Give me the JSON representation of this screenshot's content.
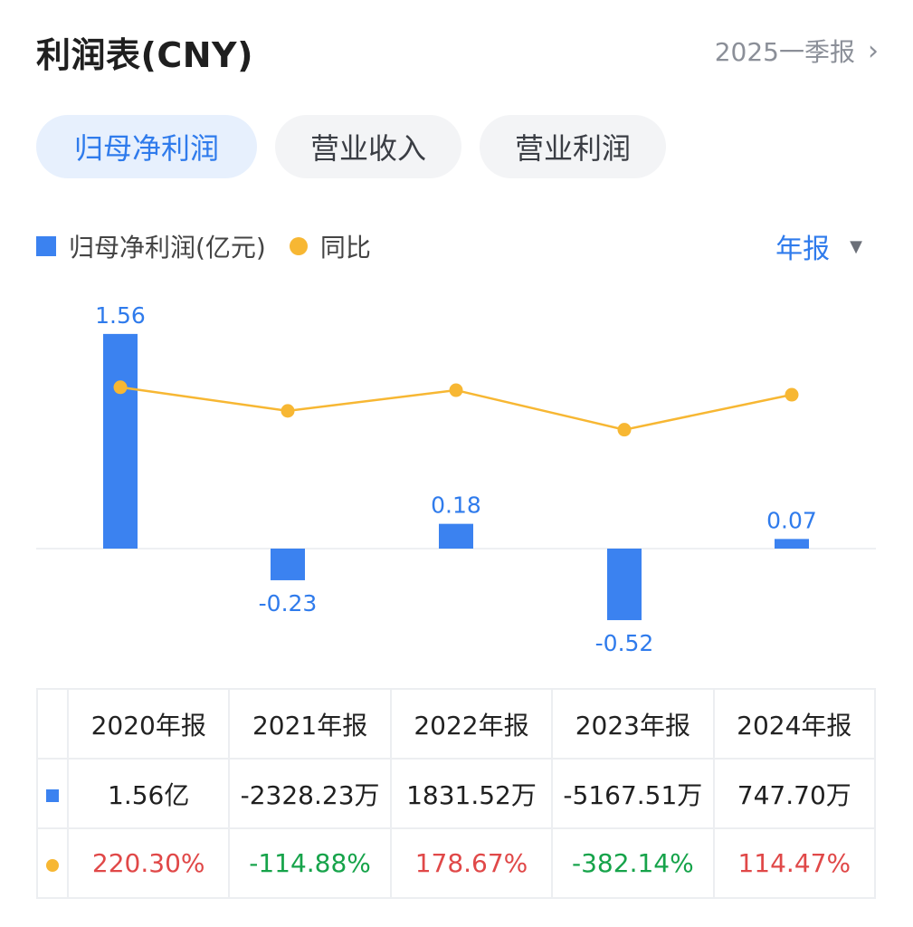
{
  "header": {
    "title": "利润表(CNY)",
    "period": "2025一季报",
    "chevron_icon": "chevron-right-icon"
  },
  "tabs": [
    {
      "label": "归母净利润",
      "active": true
    },
    {
      "label": "营业收入",
      "active": false
    },
    {
      "label": "营业利润",
      "active": false
    }
  ],
  "legend": {
    "bar_label": "归母净利润(亿元)",
    "line_label": "同比"
  },
  "period_select": {
    "label": "年报",
    "icon": "triangle-down-icon"
  },
  "colors": {
    "bar": "#3b82f0",
    "line": "#f7b733",
    "accent": "#2f7bec",
    "positive": "#e04848",
    "negative": "#16a34a"
  },
  "chart_data": {
    "type": "bar",
    "categories": [
      "2020年报",
      "2021年报",
      "2022年报",
      "2023年报",
      "2024年报"
    ],
    "series": [
      {
        "name": "归母净利润(亿元)",
        "type": "bar",
        "values": [
          1.56,
          -0.23,
          0.18,
          -0.52,
          0.07
        ],
        "labels": [
          "1.56",
          "-0.23",
          "0.18",
          "-0.52",
          "0.07"
        ]
      },
      {
        "name": "同比",
        "type": "line",
        "values": [
          220.3,
          -114.88,
          178.67,
          -382.14,
          114.47
        ]
      }
    ]
  },
  "table": {
    "headers": [
      "2020年报",
      "2021年报",
      "2022年报",
      "2023年报",
      "2024年报"
    ],
    "profit_row": [
      "1.56亿",
      "-2328.23万",
      "1831.52万",
      "-5167.51万",
      "747.70万"
    ],
    "yoy_row": [
      "220.30%",
      "-114.88%",
      "178.67%",
      "-382.14%",
      "114.47%"
    ]
  }
}
